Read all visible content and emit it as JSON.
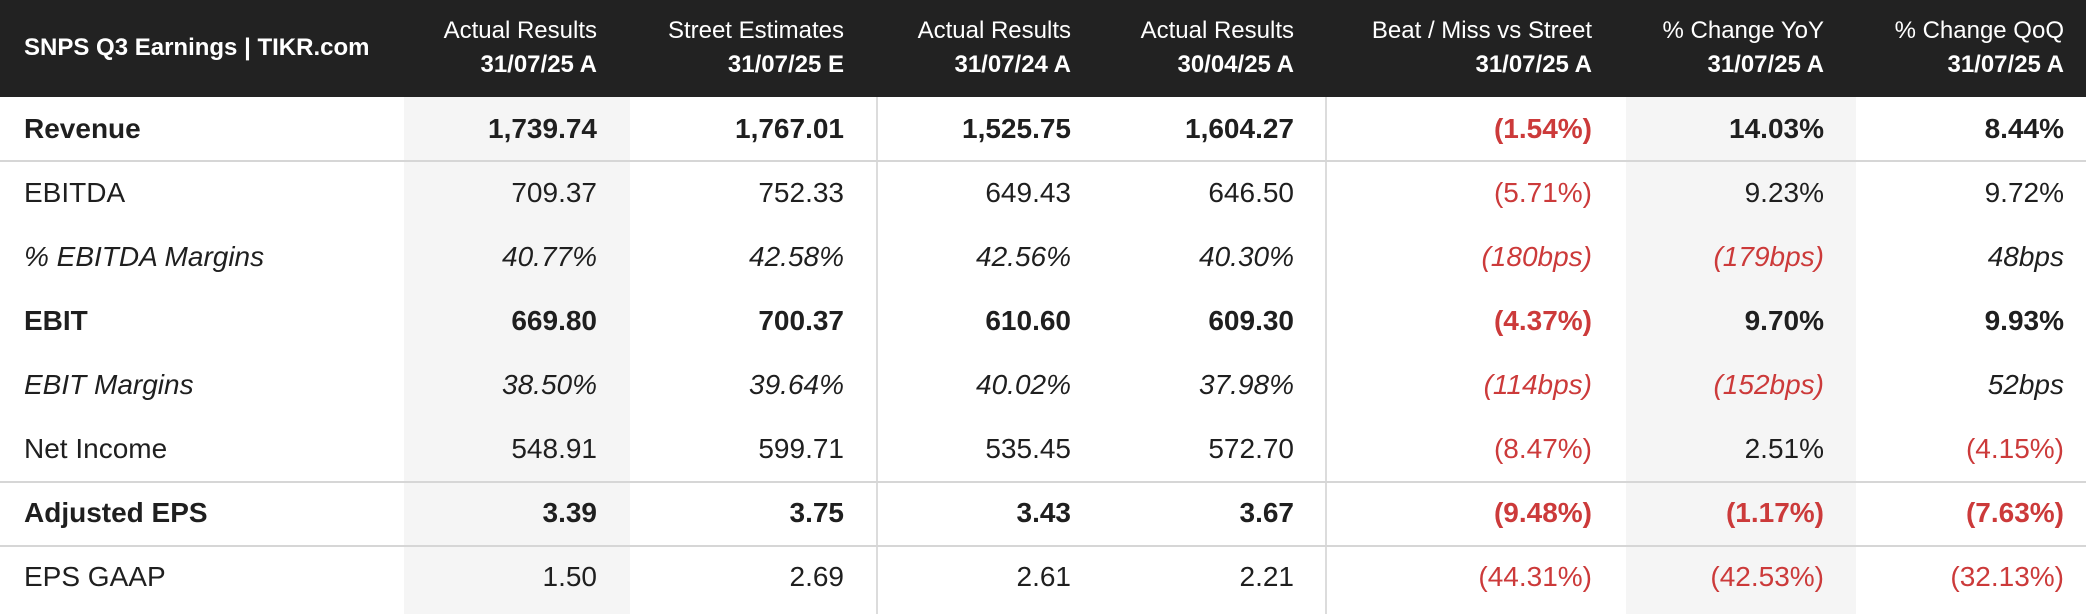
{
  "table": {
    "title": "SNPS Q3 Earnings | TIKR.com",
    "columns": [
      {
        "line1": "Actual Results",
        "line2": "31/07/25 A"
      },
      {
        "line1": "Street Estimates",
        "line2": "31/07/25 E"
      },
      {
        "line1": "Actual Results",
        "line2": "31/07/24 A"
      },
      {
        "line1": "Actual Results",
        "line2": "30/04/25 A"
      },
      {
        "line1": "Beat / Miss vs Street",
        "line2": "31/07/25 A"
      },
      {
        "line1": "% Change YoY",
        "line2": "31/07/25 A"
      },
      {
        "line1": "% Change QoQ",
        "line2": "31/07/25 A"
      }
    ],
    "rows": [
      {
        "label": "Revenue",
        "style": "bold",
        "values": [
          "1,739.74",
          "1,767.01",
          "1,525.75",
          "1,604.27",
          "(1.54%)",
          "14.03%",
          "8.44%"
        ]
      },
      {
        "label": "EBITDA",
        "style": "normal",
        "values": [
          "709.37",
          "752.33",
          "649.43",
          "646.50",
          "(5.71%)",
          "9.23%",
          "9.72%"
        ]
      },
      {
        "label": "% EBITDA Margins",
        "style": "italic",
        "values": [
          "40.77%",
          "42.58%",
          "42.56%",
          "40.30%",
          "(180bps)",
          "(179bps)",
          "48bps"
        ]
      },
      {
        "label": "EBIT",
        "style": "bold",
        "values": [
          "669.80",
          "700.37",
          "610.60",
          "609.30",
          "(4.37%)",
          "9.70%",
          "9.93%"
        ]
      },
      {
        "label": "EBIT Margins",
        "style": "italic",
        "values": [
          "38.50%",
          "39.64%",
          "40.02%",
          "37.98%",
          "(114bps)",
          "(152bps)",
          "52bps"
        ]
      },
      {
        "label": "Net Income",
        "style": "normal",
        "values": [
          "548.91",
          "599.71",
          "535.45",
          "572.70",
          "(8.47%)",
          "2.51%",
          "(4.15%)"
        ]
      },
      {
        "label": "Adjusted EPS",
        "style": "bold",
        "values": [
          "3.39",
          "3.75",
          "3.43",
          "3.67",
          "(9.48%)",
          "(1.17%)",
          "(7.63%)"
        ]
      },
      {
        "label": "EPS GAAP",
        "style": "normal",
        "values": [
          "1.50",
          "2.69",
          "2.61",
          "2.21",
          "(44.31%)",
          "(42.53%)",
          "(32.13%)"
        ]
      }
    ]
  },
  "colors": {
    "header_bg": "#222222",
    "header_text": "#ffffff",
    "negative": "#cc3a3a",
    "shade": "#f5f5f5"
  }
}
